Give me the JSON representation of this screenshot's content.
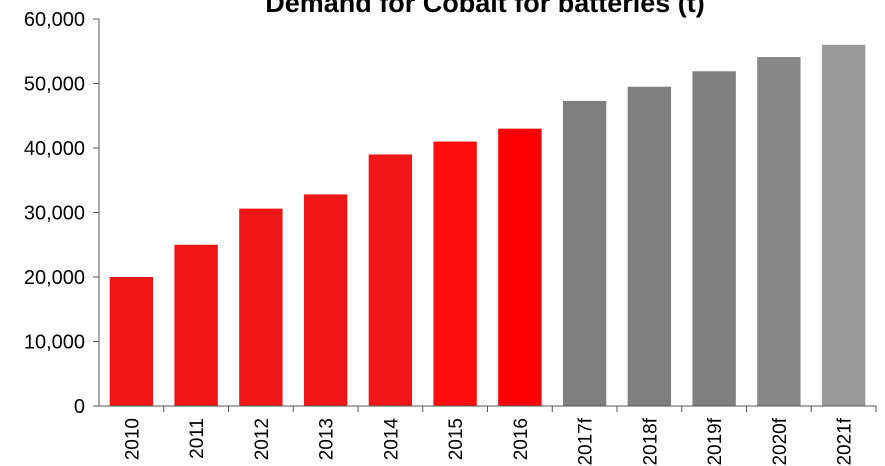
{
  "chart_data": {
    "type": "bar",
    "title": "Demand for Cobalt for batteries (t)",
    "xlabel": "",
    "ylabel": "",
    "ylim": [
      0,
      60000
    ],
    "yticks": [
      "0",
      "10,000",
      "20,000",
      "30,000",
      "40,000",
      "50,000",
      "60,000"
    ],
    "categories": [
      "2010",
      "2011",
      "2012",
      "2013",
      "2014",
      "2015",
      "2016",
      "2017f",
      "2018f",
      "2019f",
      "2020f",
      "2021f"
    ],
    "values": [
      20000,
      25000,
      30600,
      32800,
      39000,
      41000,
      43000,
      47300,
      49500,
      51900,
      54100,
      56000
    ],
    "colors": [
      "#f01616",
      "#f01616",
      "#f01616",
      "#f01616",
      "#f01616",
      "#ff0c0c",
      "#ff0000",
      "#7f7f7f",
      "#7f7f7f",
      "#808080",
      "#888888",
      "#999999"
    ],
    "grid": false,
    "legend": "none"
  }
}
